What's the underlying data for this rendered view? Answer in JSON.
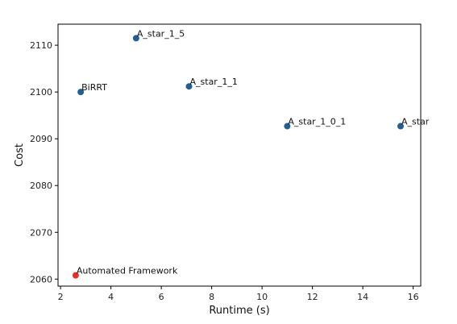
{
  "chart_data": {
    "type": "scatter",
    "title": "",
    "xlabel": "Runtime (s)",
    "ylabel": "Cost",
    "xlim": [
      1.9,
      16.3
    ],
    "ylim": [
      2058.5,
      2114.5
    ],
    "xticks": [
      2,
      4,
      6,
      8,
      10,
      12,
      14,
      16
    ],
    "yticks": [
      2060,
      2070,
      2080,
      2090,
      2100,
      2110
    ],
    "grid": false,
    "points": [
      {
        "label": "A_star_1_5",
        "x": 5.0,
        "y": 2111.5,
        "color": "#1f5f9a"
      },
      {
        "label": "BiRRT",
        "x": 2.8,
        "y": 2100.0,
        "color": "#1f5f9a"
      },
      {
        "label": "A_star_1_1",
        "x": 7.1,
        "y": 2101.2,
        "color": "#1f5f9a"
      },
      {
        "label": "A_star_1_0_1",
        "x": 11.0,
        "y": 2092.7,
        "color": "#1f5f9a"
      },
      {
        "label": "A_star",
        "x": 15.5,
        "y": 2092.7,
        "color": "#1f5f9a"
      },
      {
        "label": "Automated Framework",
        "x": 2.6,
        "y": 2060.8,
        "color": "#e8321e"
      }
    ]
  }
}
